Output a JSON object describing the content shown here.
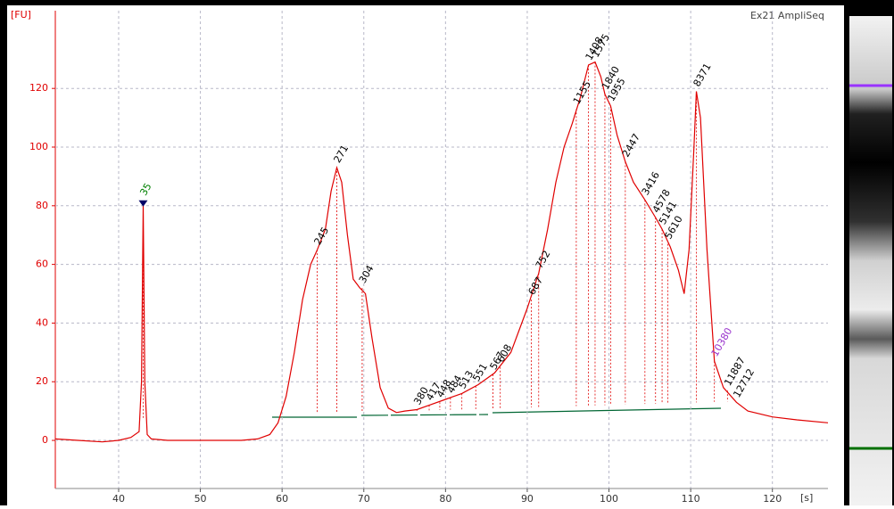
{
  "chart_data": {
    "type": "line",
    "title": "Ex21 AmpliSeq",
    "x_label": "[s]",
    "y_label": "[FU]",
    "xlim": [
      32.25,
      126.8
    ],
    "ylim": [
      -16.4,
      146.5
    ],
    "xticks": [
      40,
      50,
      60,
      70,
      80,
      90,
      100,
      110,
      120
    ],
    "yticks": [
      0,
      20,
      40,
      60,
      80,
      100,
      120
    ],
    "grid": true,
    "color": "#e00000",
    "x": [
      32.25,
      35,
      38,
      40,
      41.5,
      42.5,
      42.8,
      43.0,
      43.2,
      43.5,
      44,
      46,
      50,
      55,
      57,
      58.5,
      59.5,
      60.5,
      61.5,
      62.5,
      63.5,
      64.3,
      65.3,
      66,
      66.7,
      67.3,
      68,
      68.7,
      69.5,
      70.2,
      71,
      72,
      73,
      74,
      75,
      76.5,
      78,
      80,
      82,
      84,
      86,
      88,
      90,
      91.4,
      92.5,
      93.5,
      94.5,
      95.5,
      96.5,
      97.5,
      98.3,
      99,
      99.5,
      100.2,
      101,
      102,
      103,
      104.4,
      105.7,
      106.5,
      107.5,
      108.5,
      109.2,
      109.8,
      110.4,
      110.7,
      111.2,
      112,
      112.9,
      114,
      115.6,
      117,
      120,
      123,
      126.8
    ],
    "y": [
      0.5,
      0,
      -0.5,
      0,
      1,
      3,
      20,
      80,
      20,
      2,
      0.5,
      0,
      0,
      0,
      0.5,
      2,
      6,
      15,
      30,
      48,
      60,
      65,
      72,
      85,
      93,
      88,
      70,
      55,
      52,
      50,
      35,
      18,
      11,
      9.5,
      10,
      10.5,
      12,
      14,
      16,
      19,
      23,
      30,
      45,
      57,
      72,
      88,
      100,
      108,
      117,
      128,
      129,
      124,
      118,
      114,
      104,
      95,
      88,
      82,
      76,
      72,
      66,
      58,
      50,
      65,
      100,
      119,
      110,
      65,
      27,
      18,
      13,
      10,
      8,
      7,
      6
    ],
    "peaks": [
      {
        "label": "35",
        "x": 43.0,
        "y": 80,
        "color": "#008000"
      },
      {
        "label": "245",
        "x": 64.3,
        "y": 65
      },
      {
        "label": "271",
        "x": 66.7,
        "y": 93
      },
      {
        "label": "304",
        "x": 69.8,
        "y": 52
      },
      {
        "label": "380",
        "x": 76.5,
        "y": 10.5
      },
      {
        "label": "417",
        "x": 78,
        "y": 12
      },
      {
        "label": "448",
        "x": 79.3,
        "y": 13
      },
      {
        "label": "484",
        "x": 80.6,
        "y": 14.5
      },
      {
        "label": "513",
        "x": 82,
        "y": 16
      },
      {
        "label": "551",
        "x": 83.7,
        "y": 18.5
      },
      {
        "label": "567",
        "x": 85.8,
        "y": 22.5
      },
      {
        "label": "608",
        "x": 86.7,
        "y": 25
      },
      {
        "label": "687",
        "x": 90.5,
        "y": 48
      },
      {
        "label": "752",
        "x": 91.4,
        "y": 57
      },
      {
        "label": "1155",
        "x": 96,
        "y": 113
      },
      {
        "label": "1408",
        "x": 97.5,
        "y": 128
      },
      {
        "label": "1575",
        "x": 98.3,
        "y": 129
      },
      {
        "label": "1840",
        "x": 99.5,
        "y": 118
      },
      {
        "label": "1955",
        "x": 100.2,
        "y": 114
      },
      {
        "label": "2447",
        "x": 102,
        "y": 95
      },
      {
        "label": "3416",
        "x": 104.4,
        "y": 82
      },
      {
        "label": "4578",
        "x": 105.7,
        "y": 76
      },
      {
        "label": "5141",
        "x": 106.5,
        "y": 72
      },
      {
        "label": "5610",
        "x": 107.2,
        "y": 67
      },
      {
        "label": "8371",
        "x": 110.7,
        "y": 119
      },
      {
        "label": "10380",
        "x": 112.9,
        "y": 27,
        "color": "#9933cc"
      },
      {
        "label": "11887",
        "x": 114.5,
        "y": 17
      },
      {
        "label": "12712",
        "x": 115.6,
        "y": 13
      }
    ]
  }
}
